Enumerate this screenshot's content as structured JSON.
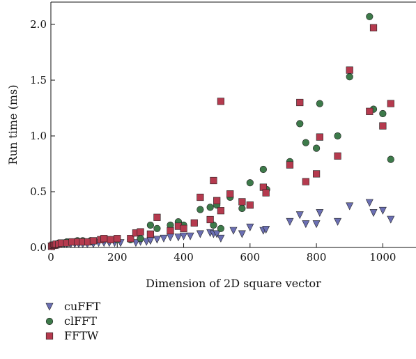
{
  "chart_data": {
    "type": "scatter",
    "title": "",
    "xlabel": "Dimension of 2D square vector",
    "ylabel": "Run time (ms)",
    "xlim": [
      0,
      1100
    ],
    "ylim": [
      0,
      2.2
    ],
    "x_ticks": [
      0,
      200,
      400,
      600,
      800,
      1000
    ],
    "y_ticks": [
      0.0,
      0.5,
      1.0,
      1.5,
      2.0
    ],
    "x_tick_labels": [
      "0",
      "200",
      "400",
      "600",
      "800",
      "1000"
    ],
    "y_tick_labels": [
      "0.0",
      "0.5",
      "1.0",
      "1.5",
      "2.0"
    ],
    "grid": false,
    "legend_position": "below",
    "series": [
      {
        "name": "cuFFT",
        "marker": "triangle-down",
        "color": "#6b6fb3",
        "points": [
          [
            2,
            0.01
          ],
          [
            4,
            0.01
          ],
          [
            8,
            0.01
          ],
          [
            12,
            0.02
          ],
          [
            16,
            0.02
          ],
          [
            24,
            0.02
          ],
          [
            32,
            0.03
          ],
          [
            40,
            0.03
          ],
          [
            48,
            0.03
          ],
          [
            60,
            0.03
          ],
          [
            72,
            0.03
          ],
          [
            84,
            0.03
          ],
          [
            96,
            0.03
          ],
          [
            110,
            0.03
          ],
          [
            128,
            0.03
          ],
          [
            144,
            0.04
          ],
          [
            160,
            0.04
          ],
          [
            176,
            0.04
          ],
          [
            192,
            0.04
          ],
          [
            210,
            0.04
          ],
          [
            256,
            0.04
          ],
          [
            270,
            0.05
          ],
          [
            288,
            0.05
          ],
          [
            300,
            0.06
          ],
          [
            320,
            0.07
          ],
          [
            340,
            0.08
          ],
          [
            360,
            0.09
          ],
          [
            384,
            0.09
          ],
          [
            400,
            0.1
          ],
          [
            420,
            0.1
          ],
          [
            450,
            0.12
          ],
          [
            480,
            0.13
          ],
          [
            490,
            0.12
          ],
          [
            500,
            0.12
          ],
          [
            512,
            0.08
          ],
          [
            550,
            0.15
          ],
          [
            576,
            0.12
          ],
          [
            600,
            0.18
          ],
          [
            640,
            0.15
          ],
          [
            648,
            0.16
          ],
          [
            720,
            0.23
          ],
          [
            750,
            0.29
          ],
          [
            768,
            0.21
          ],
          [
            800,
            0.21
          ],
          [
            810,
            0.31
          ],
          [
            864,
            0.23
          ],
          [
            900,
            0.37
          ],
          [
            960,
            0.4
          ],
          [
            972,
            0.31
          ],
          [
            1000,
            0.33
          ],
          [
            1024,
            0.25
          ]
        ]
      },
      {
        "name": "clFFT",
        "marker": "circle",
        "color": "#3d7a4a",
        "points": [
          [
            4,
            0.02
          ],
          [
            8,
            0.02
          ],
          [
            16,
            0.03
          ],
          [
            24,
            0.04
          ],
          [
            32,
            0.04
          ],
          [
            48,
            0.05
          ],
          [
            64,
            0.05
          ],
          [
            80,
            0.06
          ],
          [
            96,
            0.06
          ],
          [
            120,
            0.06
          ],
          [
            150,
            0.07
          ],
          [
            180,
            0.07
          ],
          [
            200,
            0.07
          ],
          [
            240,
            0.07
          ],
          [
            270,
            0.08
          ],
          [
            300,
            0.2
          ],
          [
            320,
            0.17
          ],
          [
            360,
            0.2
          ],
          [
            384,
            0.23
          ],
          [
            400,
            0.2
          ],
          [
            450,
            0.34
          ],
          [
            480,
            0.36
          ],
          [
            490,
            0.2
          ],
          [
            500,
            0.38
          ],
          [
            512,
            0.17
          ],
          [
            540,
            0.45
          ],
          [
            576,
            0.35
          ],
          [
            600,
            0.58
          ],
          [
            640,
            0.7
          ],
          [
            650,
            0.52
          ],
          [
            720,
            0.77
          ],
          [
            750,
            1.11
          ],
          [
            768,
            0.94
          ],
          [
            800,
            0.89
          ],
          [
            810,
            1.29
          ],
          [
            864,
            1.0
          ],
          [
            900,
            1.53
          ],
          [
            960,
            2.07
          ],
          [
            972,
            1.24
          ],
          [
            1000,
            1.2
          ],
          [
            1024,
            0.79
          ]
        ]
      },
      {
        "name": "FFTW",
        "marker": "square",
        "color": "#b53a4e",
        "points": [
          [
            2,
            0.01
          ],
          [
            6,
            0.02
          ],
          [
            10,
            0.02
          ],
          [
            16,
            0.03
          ],
          [
            24,
            0.03
          ],
          [
            32,
            0.04
          ],
          [
            48,
            0.04
          ],
          [
            64,
            0.05
          ],
          [
            80,
            0.05
          ],
          [
            96,
            0.05
          ],
          [
            112,
            0.05
          ],
          [
            128,
            0.06
          ],
          [
            150,
            0.07
          ],
          [
            160,
            0.08
          ],
          [
            180,
            0.07
          ],
          [
            200,
            0.08
          ],
          [
            240,
            0.08
          ],
          [
            256,
            0.13
          ],
          [
            270,
            0.14
          ],
          [
            300,
            0.12
          ],
          [
            320,
            0.27
          ],
          [
            360,
            0.15
          ],
          [
            384,
            0.19
          ],
          [
            400,
            0.17
          ],
          [
            432,
            0.22
          ],
          [
            450,
            0.45
          ],
          [
            480,
            0.25
          ],
          [
            490,
            0.6
          ],
          [
            500,
            0.42
          ],
          [
            512,
            1.31
          ],
          [
            512,
            0.33
          ],
          [
            540,
            0.48
          ],
          [
            576,
            0.41
          ],
          [
            600,
            0.38
          ],
          [
            640,
            0.54
          ],
          [
            648,
            0.49
          ],
          [
            720,
            0.74
          ],
          [
            750,
            1.3
          ],
          [
            768,
            0.59
          ],
          [
            800,
            0.66
          ],
          [
            810,
            0.99
          ],
          [
            864,
            0.82
          ],
          [
            900,
            1.59
          ],
          [
            960,
            1.22
          ],
          [
            972,
            1.97
          ],
          [
            1000,
            1.09
          ],
          [
            1024,
            1.29
          ]
        ]
      }
    ]
  }
}
